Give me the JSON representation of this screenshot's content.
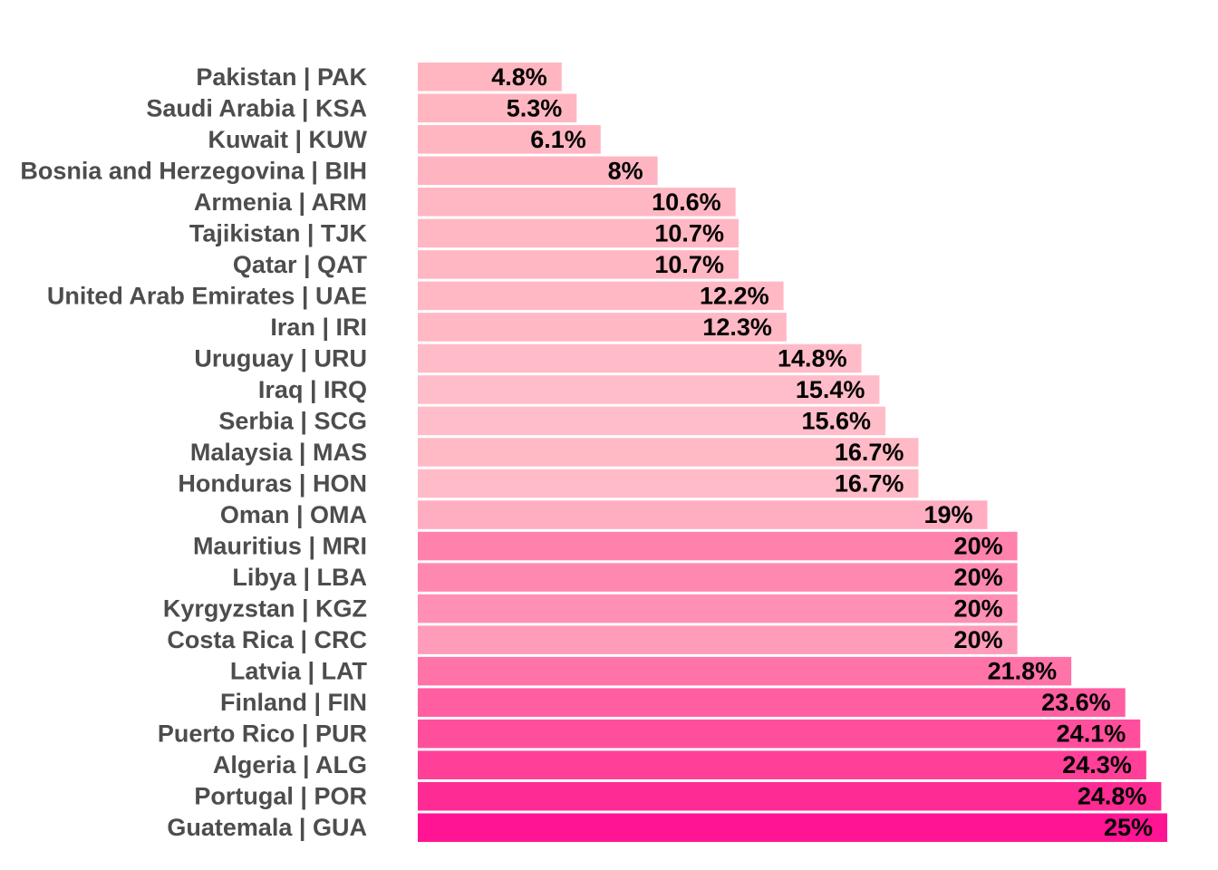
{
  "chart_data": {
    "type": "bar",
    "orientation": "horizontal",
    "title": "",
    "xlabel": "",
    "ylabel": "",
    "xlim": [
      0,
      25
    ],
    "grid": false,
    "legend": "none",
    "categories": [
      "Pakistan | PAK",
      "Saudi Arabia | KSA",
      "Kuwait | KUW",
      "Bosnia and Herzegovina | BIH",
      "Armenia | ARM",
      "Tajikistan | TJK",
      "Qatar | QAT",
      "United Arab Emirates | UAE",
      "Iran | IRI",
      "Uruguay | URU",
      "Iraq | IRQ",
      "Serbia | SCG",
      "Malaysia | MAS",
      "Honduras | HON",
      "Oman | OMA",
      "Mauritius | MRI",
      "Libya | LBA",
      "Kyrgyzstan | KGZ",
      "Costa Rica | CRC",
      "Latvia | LAT",
      "Finland | FIN",
      "Puerto Rico | PUR",
      "Algeria | ALG",
      "Portugal | POR",
      "Guatemala | GUA"
    ],
    "values": [
      4.8,
      5.3,
      6.1,
      8,
      10.6,
      10.7,
      10.7,
      12.2,
      12.3,
      14.8,
      15.4,
      15.6,
      16.7,
      16.7,
      19,
      20,
      20,
      20,
      20,
      21.8,
      23.6,
      24.1,
      24.3,
      24.8,
      25
    ],
    "value_labels": [
      "4.8%",
      "5.3%",
      "6.1%",
      "8%",
      "10.6%",
      "10.7%",
      "10.7%",
      "12.2%",
      "12.3%",
      "14.8%",
      "15.4%",
      "15.6%",
      "16.7%",
      "16.7%",
      "19%",
      "20%",
      "20%",
      "20%",
      "20%",
      "21.8%",
      "23.6%",
      "24.1%",
      "24.3%",
      "24.8%",
      "25%"
    ],
    "bar_colors": [
      "#ffb6c1",
      "#ffb6c1",
      "#ffb6c1",
      "#ffb5c1",
      "#ffb7c3",
      "#ffb7c3",
      "#ffb7c3",
      "#ffb8c4",
      "#ffb8c4",
      "#ffbcc8",
      "#ffbdc9",
      "#ffbdc9",
      "#ffbac6",
      "#ffbcc8",
      "#ffaec2",
      "#ff82ad",
      "#ff88b0",
      "#ff8fb4",
      "#ff9cba",
      "#ff73a8",
      "#ff5ea0",
      "#ff4e9c",
      "#ff3f98",
      "#ff2b94",
      "#ff1493"
    ]
  }
}
